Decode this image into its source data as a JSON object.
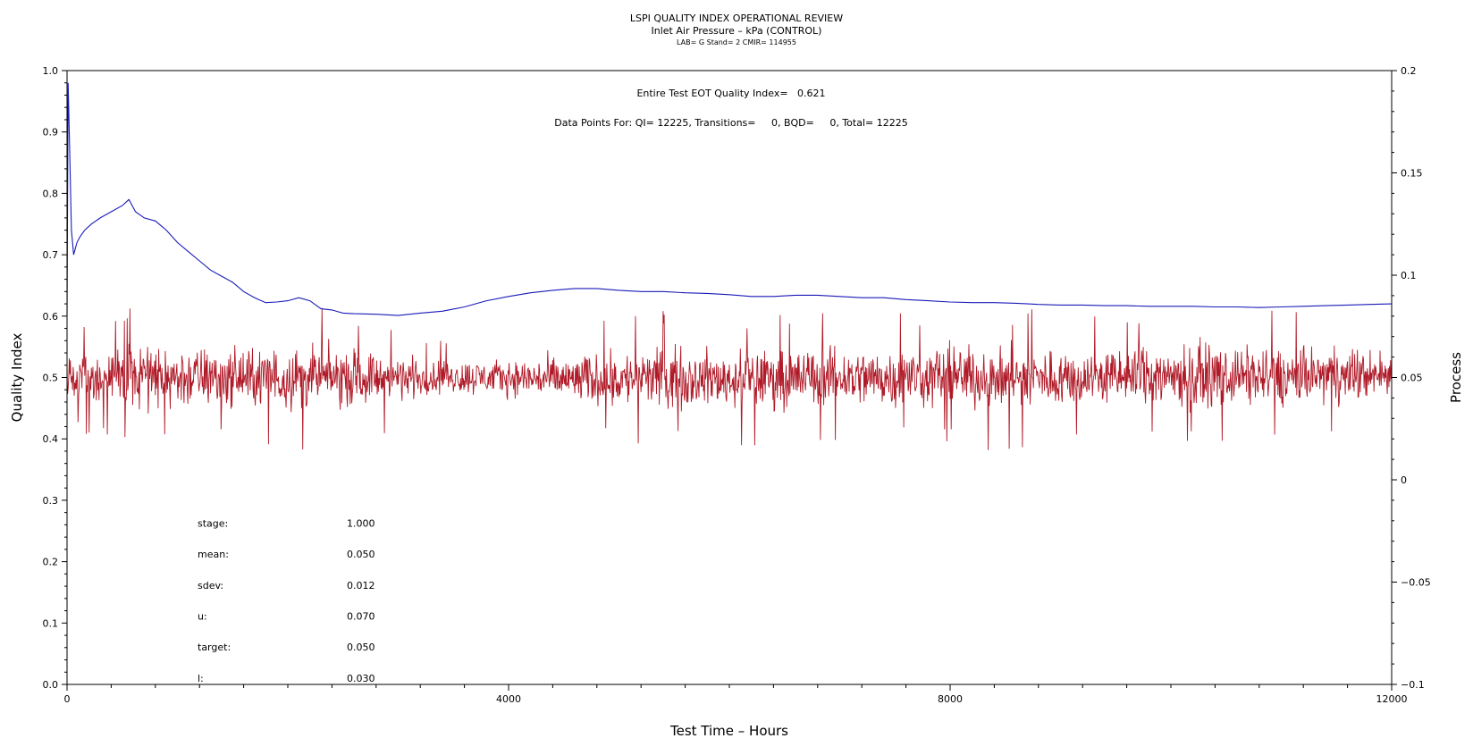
{
  "chart_data": {
    "type": "line",
    "title": "LSPI QUALITY INDEX OPERATIONAL REVIEW",
    "subtitle": "Inlet Air Pressure – kPa (CONTROL)",
    "subtitle2": "LAB= G Stand= 2 CMIR= 114955",
    "xlabel": "Test Time – Hours",
    "ylabel_left": "Quality Index",
    "ylabel_right": "Process",
    "xlim": [
      0,
      12000
    ],
    "ylim_left": [
      0.0,
      1.0
    ],
    "ylim_right": [
      -0.1,
      0.2
    ],
    "x_ticks": [
      "0",
      "4000",
      "8000",
      "12000"
    ],
    "y_ticks_left": [
      "0.0",
      "0.1",
      "0.2",
      "0.3",
      "0.4",
      "0.5",
      "0.6",
      "0.7",
      "0.8",
      "0.9",
      "1.0"
    ],
    "y_ticks_right": [
      "−0.1",
      "−0.05",
      "0",
      "0.05",
      "0.1",
      "0.15",
      "0.2"
    ],
    "grid": false,
    "annotation_qi": "Entire Test EOT Quality Index=   0.621",
    "annotation_points": "Data Points For: QI= 12225, Transitions=     0, BQD=     0, Total= 12225",
    "stats": [
      {
        "label": "stage:",
        "value": "1.000"
      },
      {
        "label": "mean:",
        "value": "0.050"
      },
      {
        "label": "sdev:",
        "value": "0.012"
      },
      {
        "label": "u:",
        "value": "0.070"
      },
      {
        "label": "target:",
        "value": "0.050"
      },
      {
        "label": "l:",
        "value": "0.030"
      }
    ],
    "colors": {
      "quality_index": "#1a1ab8",
      "process": "#b01a28"
    },
    "series": [
      {
        "axis": "left",
        "values": [
          [
            0,
            0.6
          ],
          [
            10,
            0.98
          ],
          [
            20,
            0.9
          ],
          [
            30,
            0.82
          ],
          [
            40,
            0.74
          ],
          [
            60,
            0.7
          ],
          [
            90,
            0.72
          ],
          [
            120,
            0.73
          ],
          [
            160,
            0.74
          ],
          [
            220,
            0.75
          ],
          [
            300,
            0.76
          ],
          [
            400,
            0.77
          ],
          [
            500,
            0.78
          ],
          [
            560,
            0.79
          ],
          [
            620,
            0.77
          ],
          [
            700,
            0.76
          ],
          [
            800,
            0.755
          ],
          [
            900,
            0.74
          ],
          [
            1000,
            0.72
          ],
          [
            1100,
            0.705
          ],
          [
            1200,
            0.69
          ],
          [
            1300,
            0.675
          ],
          [
            1400,
            0.665
          ],
          [
            1500,
            0.655
          ],
          [
            1600,
            0.64
          ],
          [
            1700,
            0.63
          ],
          [
            1800,
            0.622
          ],
          [
            1900,
            0.623
          ],
          [
            2000,
            0.625
          ],
          [
            2100,
            0.63
          ],
          [
            2200,
            0.625
          ],
          [
            2300,
            0.612
          ],
          [
            2400,
            0.61
          ],
          [
            2500,
            0.605
          ],
          [
            2600,
            0.604
          ],
          [
            2800,
            0.603
          ],
          [
            3000,
            0.601
          ],
          [
            3200,
            0.605
          ],
          [
            3400,
            0.608
          ],
          [
            3600,
            0.615
          ],
          [
            3800,
            0.625
          ],
          [
            4000,
            0.632
          ],
          [
            4200,
            0.638
          ],
          [
            4400,
            0.642
          ],
          [
            4600,
            0.645
          ],
          [
            4800,
            0.645
          ],
          [
            5000,
            0.642
          ],
          [
            5200,
            0.64
          ],
          [
            5400,
            0.64
          ],
          [
            5600,
            0.638
          ],
          [
            5800,
            0.637
          ],
          [
            6000,
            0.635
          ],
          [
            6200,
            0.632
          ],
          [
            6400,
            0.632
          ],
          [
            6600,
            0.634
          ],
          [
            6800,
            0.634
          ],
          [
            7000,
            0.632
          ],
          [
            7200,
            0.63
          ],
          [
            7400,
            0.63
          ],
          [
            7600,
            0.627
          ],
          [
            7800,
            0.625
          ],
          [
            8000,
            0.623
          ],
          [
            8200,
            0.622
          ],
          [
            8400,
            0.622
          ],
          [
            8600,
            0.621
          ],
          [
            8800,
            0.619
          ],
          [
            9000,
            0.618
          ],
          [
            9200,
            0.618
          ],
          [
            9400,
            0.617
          ],
          [
            9600,
            0.617
          ],
          [
            9800,
            0.616
          ],
          [
            10000,
            0.616
          ],
          [
            10200,
            0.616
          ],
          [
            10400,
            0.615
          ],
          [
            10600,
            0.615
          ],
          [
            10800,
            0.614
          ],
          [
            11000,
            0.615
          ],
          [
            11200,
            0.616
          ],
          [
            11400,
            0.617
          ],
          [
            11600,
            0.618
          ],
          [
            11800,
            0.619
          ],
          [
            12000,
            0.62
          ]
        ]
      },
      {
        "axis": "right",
        "noise": "dense fluctuation around 0.05, sdev 0.012",
        "envelope": [
          [
            0,
            0.065,
            0.035
          ],
          [
            500,
            0.07,
            0.03
          ],
          [
            1000,
            0.072,
            0.028
          ],
          [
            1500,
            0.07,
            0.03
          ],
          [
            2000,
            0.072,
            0.028
          ],
          [
            2500,
            0.07,
            0.03
          ],
          [
            3000,
            0.065,
            0.035
          ],
          [
            3500,
            0.062,
            0.038
          ],
          [
            4000,
            0.062,
            0.038
          ],
          [
            4500,
            0.065,
            0.033
          ],
          [
            5000,
            0.068,
            0.03
          ],
          [
            5500,
            0.07,
            0.03
          ],
          [
            6000,
            0.068,
            0.03
          ],
          [
            6500,
            0.07,
            0.03
          ],
          [
            7000,
            0.07,
            0.03
          ],
          [
            7500,
            0.07,
            0.03
          ],
          [
            8000,
            0.072,
            0.03
          ],
          [
            8500,
            0.07,
            0.028
          ],
          [
            9000,
            0.07,
            0.03
          ],
          [
            9500,
            0.07,
            0.03
          ],
          [
            10000,
            0.072,
            0.03
          ],
          [
            10500,
            0.072,
            0.03
          ],
          [
            11000,
            0.07,
            0.03
          ],
          [
            11500,
            0.07,
            0.032
          ],
          [
            12000,
            0.068,
            0.035
          ]
        ]
      }
    ]
  }
}
